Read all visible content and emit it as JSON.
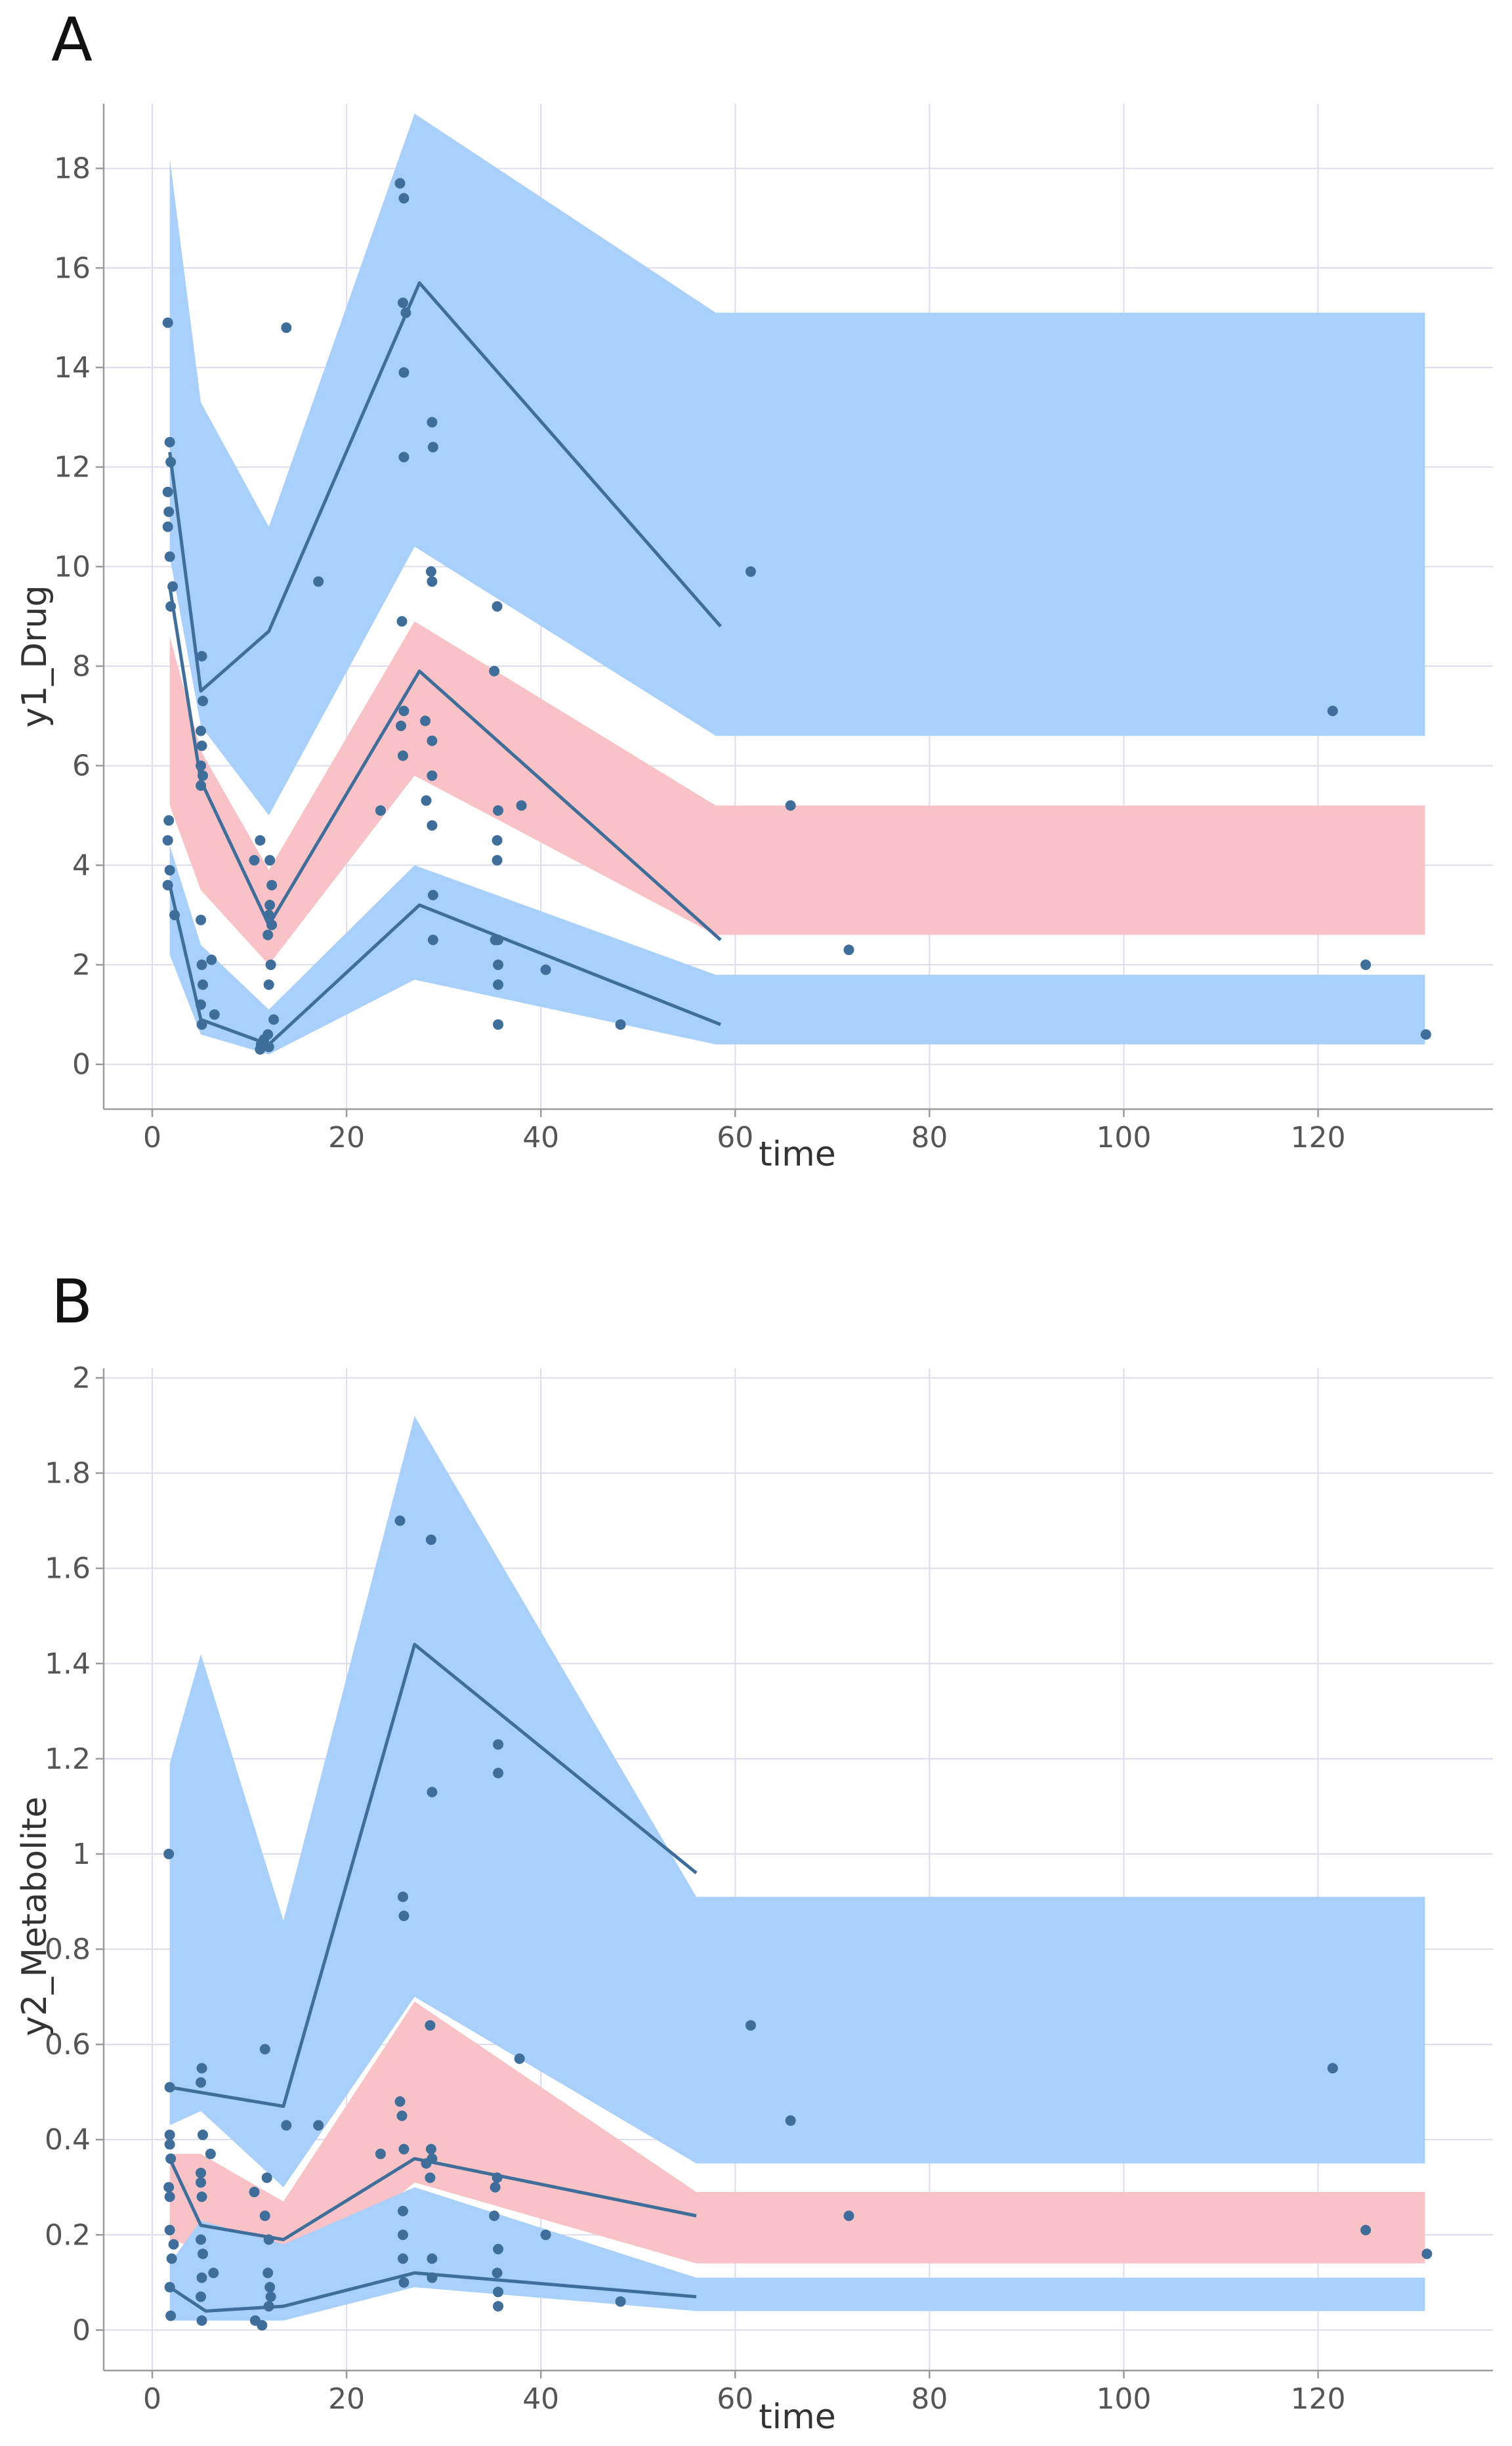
{
  "panels": [
    {
      "id": "A",
      "letter": "A",
      "chart_data": {
        "type": "scatter",
        "title": "",
        "xlabel": "time",
        "ylabel": "y1_Drug",
        "xlim": [
          -5,
          138
        ],
        "ylim": [
          -0.9,
          19.3
        ],
        "xticks": [
          0,
          20,
          40,
          60,
          80,
          100,
          120
        ],
        "yticks": [
          0,
          2,
          4,
          6,
          8,
          10,
          12,
          14,
          16,
          18
        ],
        "grid": true,
        "bands": [
          {
            "name": "upper-percentile-ci",
            "color": "#a8d0fa",
            "x": [
              1.8,
              5,
              12,
              27,
              58,
              131
            ],
            "lower": [
              10.2,
              6.8,
              5.0,
              10.4,
              6.6,
              6.6
            ],
            "upper": [
              18.2,
              13.3,
              10.8,
              19.1,
              15.1,
              15.1
            ]
          },
          {
            "name": "median-ci",
            "color": "#f8c2c6",
            "x": [
              1.8,
              5,
              12,
              27,
              58,
              131
            ],
            "lower": [
              5.2,
              3.5,
              2.0,
              5.8,
              2.6,
              2.6
            ],
            "upper": [
              8.6,
              6.3,
              3.9,
              8.9,
              5.2,
              5.2
            ]
          },
          {
            "name": "lower-percentile-ci",
            "color": "#a8d0fa",
            "x": [
              1.8,
              5,
              12,
              27,
              58,
              131
            ],
            "lower": [
              2.2,
              0.6,
              0.2,
              1.7,
              0.4,
              0.4
            ],
            "upper": [
              4.4,
              2.4,
              1.1,
              4.0,
              1.8,
              1.8
            ]
          }
        ],
        "series": [
          {
            "name": "observed-upper-percentile",
            "x": [
              1.8,
              5,
              12,
              27.5,
              58.5
            ],
            "y": [
              12.3,
              7.5,
              8.7,
              15.7,
              8.8
            ]
          },
          {
            "name": "observed-median",
            "x": [
              1.8,
              5,
              12,
              27.5,
              58.5
            ],
            "y": [
              9.6,
              5.7,
              2.8,
              7.9,
              2.5
            ]
          },
          {
            "name": "observed-lower-percentile",
            "x": [
              1.8,
              5,
              12,
              27.5,
              58.5
            ],
            "y": [
              3.6,
              0.9,
              0.4,
              3.2,
              0.8
            ]
          }
        ],
        "points": [
          [
            1.6,
            14.9
          ],
          [
            1.8,
            12.5
          ],
          [
            1.9,
            12.1
          ],
          [
            1.6,
            11.5
          ],
          [
            1.7,
            11.1
          ],
          [
            1.6,
            10.8
          ],
          [
            1.8,
            10.2
          ],
          [
            2.1,
            9.6
          ],
          [
            1.9,
            9.2
          ],
          [
            1.7,
            4.9
          ],
          [
            1.6,
            4.5
          ],
          [
            1.8,
            3.9
          ],
          [
            1.6,
            3.6
          ],
          [
            2.3,
            3.0
          ],
          [
            5.1,
            8.2
          ],
          [
            5.2,
            7.3
          ],
          [
            5.0,
            6.7
          ],
          [
            5.1,
            6.4
          ],
          [
            5.0,
            6.0
          ],
          [
            5.2,
            5.8
          ],
          [
            5.0,
            5.6
          ],
          [
            5.0,
            2.9
          ],
          [
            5.1,
            2.0
          ],
          [
            5.2,
            1.6
          ],
          [
            5.0,
            1.2
          ],
          [
            5.1,
            0.8
          ],
          [
            6.1,
            2.1
          ],
          [
            6.4,
            1.0
          ],
          [
            10.5,
            4.1
          ],
          [
            11.1,
            4.5
          ],
          [
            12.1,
            4.1
          ],
          [
            12.3,
            3.6
          ],
          [
            12.1,
            3.2
          ],
          [
            12.0,
            3.0
          ],
          [
            12.3,
            2.8
          ],
          [
            11.9,
            2.6
          ],
          [
            12.2,
            2.0
          ],
          [
            12.0,
            1.6
          ],
          [
            12.5,
            0.9
          ],
          [
            11.5,
            0.5
          ],
          [
            11.2,
            0.4
          ],
          [
            11.9,
            0.6
          ],
          [
            11.1,
            0.3
          ],
          [
            12.0,
            0.35
          ],
          [
            13.8,
            14.8
          ],
          [
            17.1,
            9.7
          ],
          [
            23.5,
            5.1
          ],
          [
            25.5,
            17.7
          ],
          [
            25.9,
            17.4
          ],
          [
            25.8,
            15.3
          ],
          [
            26.1,
            15.1
          ],
          [
            25.9,
            13.9
          ],
          [
            25.9,
            12.2
          ],
          [
            25.7,
            8.9
          ],
          [
            25.9,
            7.1
          ],
          [
            25.6,
            6.8
          ],
          [
            25.8,
            6.2
          ],
          [
            28.8,
            12.9
          ],
          [
            28.9,
            12.4
          ],
          [
            28.7,
            9.9
          ],
          [
            28.8,
            9.7
          ],
          [
            28.1,
            6.9
          ],
          [
            28.8,
            6.5
          ],
          [
            28.8,
            5.8
          ],
          [
            28.2,
            5.3
          ],
          [
            28.8,
            4.8
          ],
          [
            28.9,
            3.4
          ],
          [
            28.9,
            2.5
          ],
          [
            35.5,
            9.2
          ],
          [
            35.2,
            7.9
          ],
          [
            35.6,
            5.1
          ],
          [
            35.5,
            4.5
          ],
          [
            35.5,
            4.1
          ],
          [
            35.3,
            2.5
          ],
          [
            35.6,
            2.5
          ],
          [
            35.6,
            2.0
          ],
          [
            35.6,
            1.6
          ],
          [
            35.6,
            0.8
          ],
          [
            38.0,
            5.2
          ],
          [
            40.5,
            1.9
          ],
          [
            48.2,
            0.8
          ],
          [
            61.6,
            9.9
          ],
          [
            65.7,
            5.2
          ],
          [
            71.7,
            2.3
          ],
          [
            121.5,
            7.1
          ],
          [
            124.9,
            2.0
          ],
          [
            131.1,
            0.6
          ]
        ]
      }
    },
    {
      "id": "B",
      "letter": "B",
      "chart_data": {
        "type": "scatter",
        "title": "",
        "xlabel": "time",
        "ylabel": "y2_Metabolite",
        "xlim": [
          -5,
          138
        ],
        "ylim": [
          -0.085,
          2.02
        ],
        "xticks": [
          0,
          20,
          40,
          60,
          80,
          100,
          120
        ],
        "yticks": [
          0,
          0.2,
          0.4,
          0.6,
          0.8,
          1,
          1.2,
          1.4,
          1.6,
          1.8,
          2
        ],
        "ytick_labels": [
          "0",
          "0.2",
          "0.4",
          "0.6",
          "0.8",
          "1",
          "1.2",
          "1.4",
          "1.6",
          "1.8",
          "2"
        ],
        "grid": true,
        "bands": [
          {
            "name": "upper-percentile-ci",
            "color": "#a8d0fa",
            "x": [
              1.8,
              5,
              13.5,
              27,
              56,
              131
            ],
            "lower": [
              0.43,
              0.46,
              0.3,
              0.7,
              0.35,
              0.35
            ],
            "upper": [
              1.19,
              1.42,
              0.86,
              1.92,
              0.91,
              0.91
            ]
          },
          {
            "name": "median-ci",
            "color": "#f8c2c6",
            "x": [
              1.8,
              5,
              13.5,
              27,
              56,
              131
            ],
            "lower": [
              0.19,
              0.17,
              0.08,
              0.31,
              0.14,
              0.14
            ],
            "upper": [
              0.37,
              0.37,
              0.27,
              0.69,
              0.29,
              0.29
            ]
          },
          {
            "name": "lower-percentile-ci",
            "color": "#a8d0fa",
            "x": [
              1.8,
              5,
              13.5,
              27,
              56,
              131
            ],
            "lower": [
              0.02,
              0.02,
              0.02,
              0.09,
              0.04,
              0.04
            ],
            "upper": [
              0.14,
              0.23,
              0.18,
              0.3,
              0.11,
              0.11
            ]
          }
        ],
        "series": [
          {
            "name": "observed-upper-percentile",
            "x": [
              1.8,
              13.5,
              27,
              56
            ],
            "y": [
              0.51,
              0.47,
              1.44,
              0.96
            ]
          },
          {
            "name": "observed-median",
            "x": [
              1.8,
              5,
              13.5,
              27,
              56
            ],
            "y": [
              0.36,
              0.22,
              0.19,
              0.36,
              0.24
            ]
          },
          {
            "name": "observed-lower-percentile",
            "x": [
              1.8,
              5.5,
              13.5,
              27,
              56
            ],
            "y": [
              0.09,
              0.04,
              0.05,
              0.12,
              0.07
            ]
          }
        ],
        "points": [
          [
            1.7,
            1.0
          ],
          [
            1.8,
            0.51
          ],
          [
            1.8,
            0.41
          ],
          [
            1.8,
            0.39
          ],
          [
            1.9,
            0.36
          ],
          [
            1.7,
            0.3
          ],
          [
            1.8,
            0.28
          ],
          [
            1.8,
            0.21
          ],
          [
            2.2,
            0.18
          ],
          [
            2.0,
            0.15
          ],
          [
            1.8,
            0.09
          ],
          [
            1.9,
            0.03
          ],
          [
            5.1,
            0.55
          ],
          [
            5.0,
            0.52
          ],
          [
            5.2,
            0.41
          ],
          [
            5.0,
            0.33
          ],
          [
            5.0,
            0.31
          ],
          [
            5.1,
            0.28
          ],
          [
            5.0,
            0.19
          ],
          [
            5.2,
            0.16
          ],
          [
            5.1,
            0.11
          ],
          [
            5.0,
            0.07
          ],
          [
            5.1,
            0.02
          ],
          [
            6.0,
            0.37
          ],
          [
            6.3,
            0.12
          ],
          [
            10.5,
            0.29
          ],
          [
            11.6,
            0.59
          ],
          [
            11.8,
            0.32
          ],
          [
            11.6,
            0.24
          ],
          [
            12.0,
            0.19
          ],
          [
            11.9,
            0.12
          ],
          [
            12.1,
            0.09
          ],
          [
            12.2,
            0.07
          ],
          [
            12.0,
            0.05
          ],
          [
            10.6,
            0.02
          ],
          [
            11.3,
            0.01
          ],
          [
            13.8,
            0.43
          ],
          [
            17.1,
            0.43
          ],
          [
            23.5,
            0.37
          ],
          [
            25.5,
            1.7
          ],
          [
            25.8,
            0.91
          ],
          [
            25.9,
            0.87
          ],
          [
            25.5,
            0.48
          ],
          [
            25.7,
            0.45
          ],
          [
            25.9,
            0.38
          ],
          [
            25.8,
            0.25
          ],
          [
            25.8,
            0.2
          ],
          [
            25.8,
            0.15
          ],
          [
            25.9,
            0.1
          ],
          [
            28.7,
            1.66
          ],
          [
            28.8,
            1.13
          ],
          [
            28.6,
            0.64
          ],
          [
            28.7,
            0.38
          ],
          [
            28.8,
            0.36
          ],
          [
            28.2,
            0.35
          ],
          [
            28.6,
            0.32
          ],
          [
            28.8,
            0.15
          ],
          [
            28.8,
            0.11
          ],
          [
            35.6,
            1.23
          ],
          [
            35.6,
            1.17
          ],
          [
            35.5,
            0.32
          ],
          [
            35.3,
            0.3
          ],
          [
            35.2,
            0.24
          ],
          [
            35.6,
            0.17
          ],
          [
            35.5,
            0.12
          ],
          [
            35.6,
            0.08
          ],
          [
            35.6,
            0.05
          ],
          [
            37.8,
            0.57
          ],
          [
            40.5,
            0.2
          ],
          [
            48.2,
            0.06
          ],
          [
            61.6,
            0.64
          ],
          [
            65.7,
            0.44
          ],
          [
            71.7,
            0.24
          ],
          [
            121.5,
            0.55
          ],
          [
            124.9,
            0.21
          ],
          [
            131.2,
            0.16
          ]
        ]
      }
    }
  ]
}
